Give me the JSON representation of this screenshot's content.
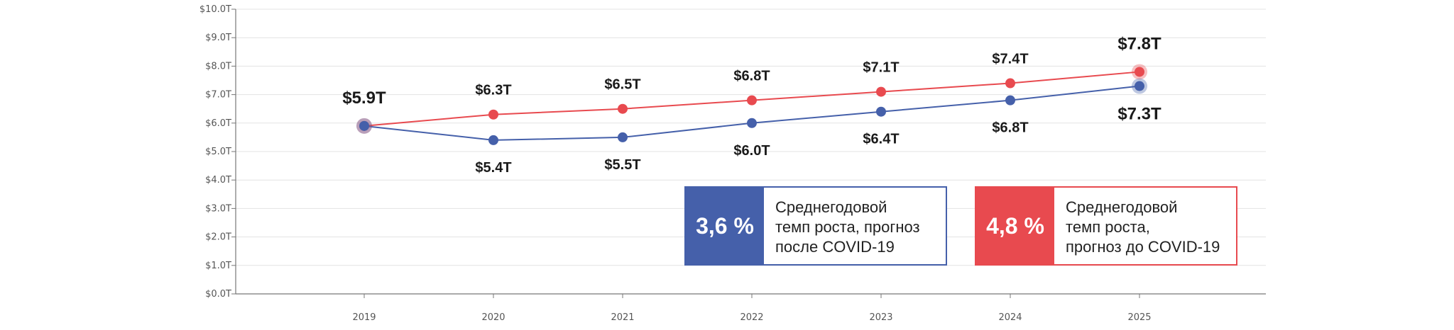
{
  "chart_data": {
    "type": "line",
    "x": [
      "2019",
      "2020",
      "2021",
      "2022",
      "2023",
      "2024",
      "2025"
    ],
    "series": [
      {
        "color": "#e84a4f",
        "values": [
          5.9,
          6.3,
          6.5,
          6.8,
          7.1,
          7.4,
          7.8
        ],
        "labels": [
          "$5.9T",
          "$6.3T",
          "$6.5T",
          "$6.8T",
          "$7.1T",
          "$7.4T",
          "$7.8T"
        ]
      },
      {
        "color": "#4560aa",
        "values": [
          5.9,
          5.4,
          5.5,
          6.0,
          6.4,
          6.8,
          7.3
        ],
        "labels": [
          "$5.9T",
          "$5.4T",
          "$5.5T",
          "$6.0T",
          "$6.4T",
          "$6.8T",
          "$7.3T"
        ]
      }
    ],
    "ylim": [
      0,
      10
    ],
    "yticks": [
      "$0.0T",
      "$1.0T",
      "$2.0T",
      "$3.0T",
      "$4.0T",
      "$5.0T",
      "$6.0T",
      "$7.0T",
      "$8.0T",
      "$9.0T",
      "$10.0T"
    ],
    "grid": true,
    "title": "",
    "xlabel": "",
    "ylabel": ""
  },
  "legend": {
    "post_covid": {
      "value": "3,6 %",
      "text": "Среднегодовой\nтемп роста, прогноз\nпосле COVID-19",
      "color": "#4560aa"
    },
    "pre_covid": {
      "value": "4,8 %",
      "text": "Среднегодовой\nтемп роста,\nпрогноз до COVID-19",
      "color": "#e84a4f"
    }
  }
}
